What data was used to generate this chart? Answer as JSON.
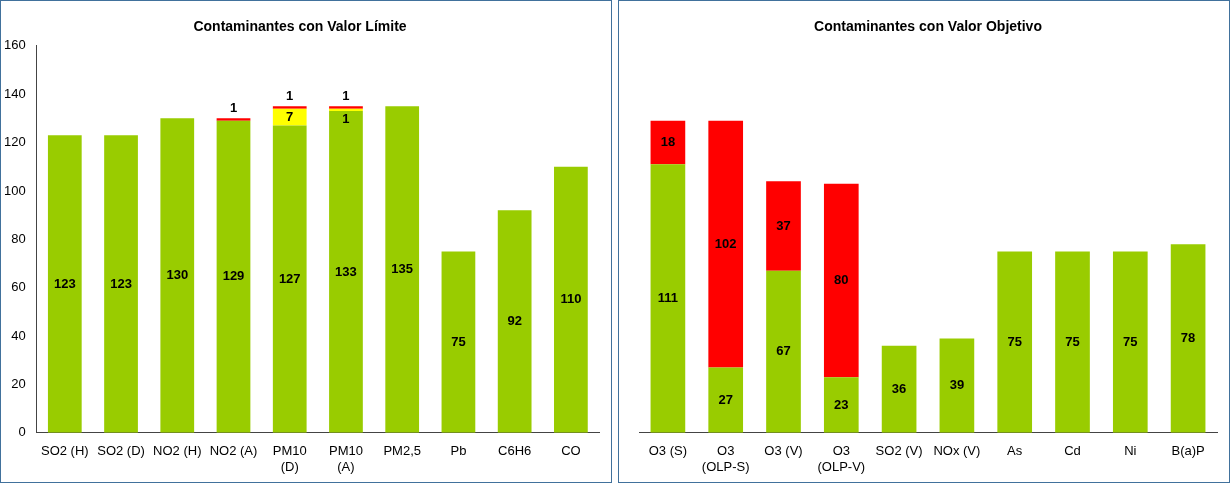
{
  "chart_data": [
    {
      "type": "bar",
      "title": "Contaminantes con Valor Límite",
      "stacked": true,
      "data_labels": true,
      "grid": false,
      "legend": false,
      "categories": [
        "SO2 (H)",
        "SO2 (D)",
        "NO2 (H)",
        "NO2 (A)",
        "PM10 (D)",
        "PM10 (A)",
        "PM2,5",
        "Pb",
        "C6H6",
        "CO"
      ],
      "ylim": [
        0,
        160
      ],
      "yticks": [
        0,
        20,
        40,
        60,
        80,
        100,
        120,
        140,
        160
      ],
      "series": [
        {
          "color": "#99cc00",
          "values": [
            123,
            123,
            130,
            129,
            127,
            133,
            135,
            75,
            92,
            110
          ]
        },
        {
          "color": "#ffff00",
          "values": [
            null,
            null,
            null,
            null,
            7,
            1,
            null,
            null,
            null,
            null
          ]
        },
        {
          "color": "#ff0000",
          "values": [
            null,
            null,
            null,
            1,
            1,
            1,
            null,
            null,
            null,
            null
          ]
        }
      ]
    },
    {
      "type": "bar",
      "title": "Contaminantes con Valor Objetivo",
      "stacked": true,
      "data_labels": true,
      "grid": false,
      "legend": false,
      "tick_labels": "x",
      "categories": [
        "O3 (S)",
        "O3 (OLP-S)",
        "O3 (V)",
        "O3 (OLP-V)",
        "SO2 (V)",
        "NOx (V)",
        "As",
        "Cd",
        "Ni",
        "B(a)P"
      ],
      "ylim": [
        0,
        160
      ],
      "yticks": [
        0,
        20,
        40,
        60,
        80,
        100,
        120,
        140,
        160
      ],
      "series": [
        {
          "color": "#99cc00",
          "values": [
            111,
            27,
            67,
            23,
            36,
            39,
            75,
            75,
            75,
            78
          ]
        },
        {
          "color": "#ff0000",
          "values": [
            18,
            102,
            37,
            80,
            null,
            null,
            null,
            null,
            null,
            null
          ]
        }
      ]
    }
  ]
}
